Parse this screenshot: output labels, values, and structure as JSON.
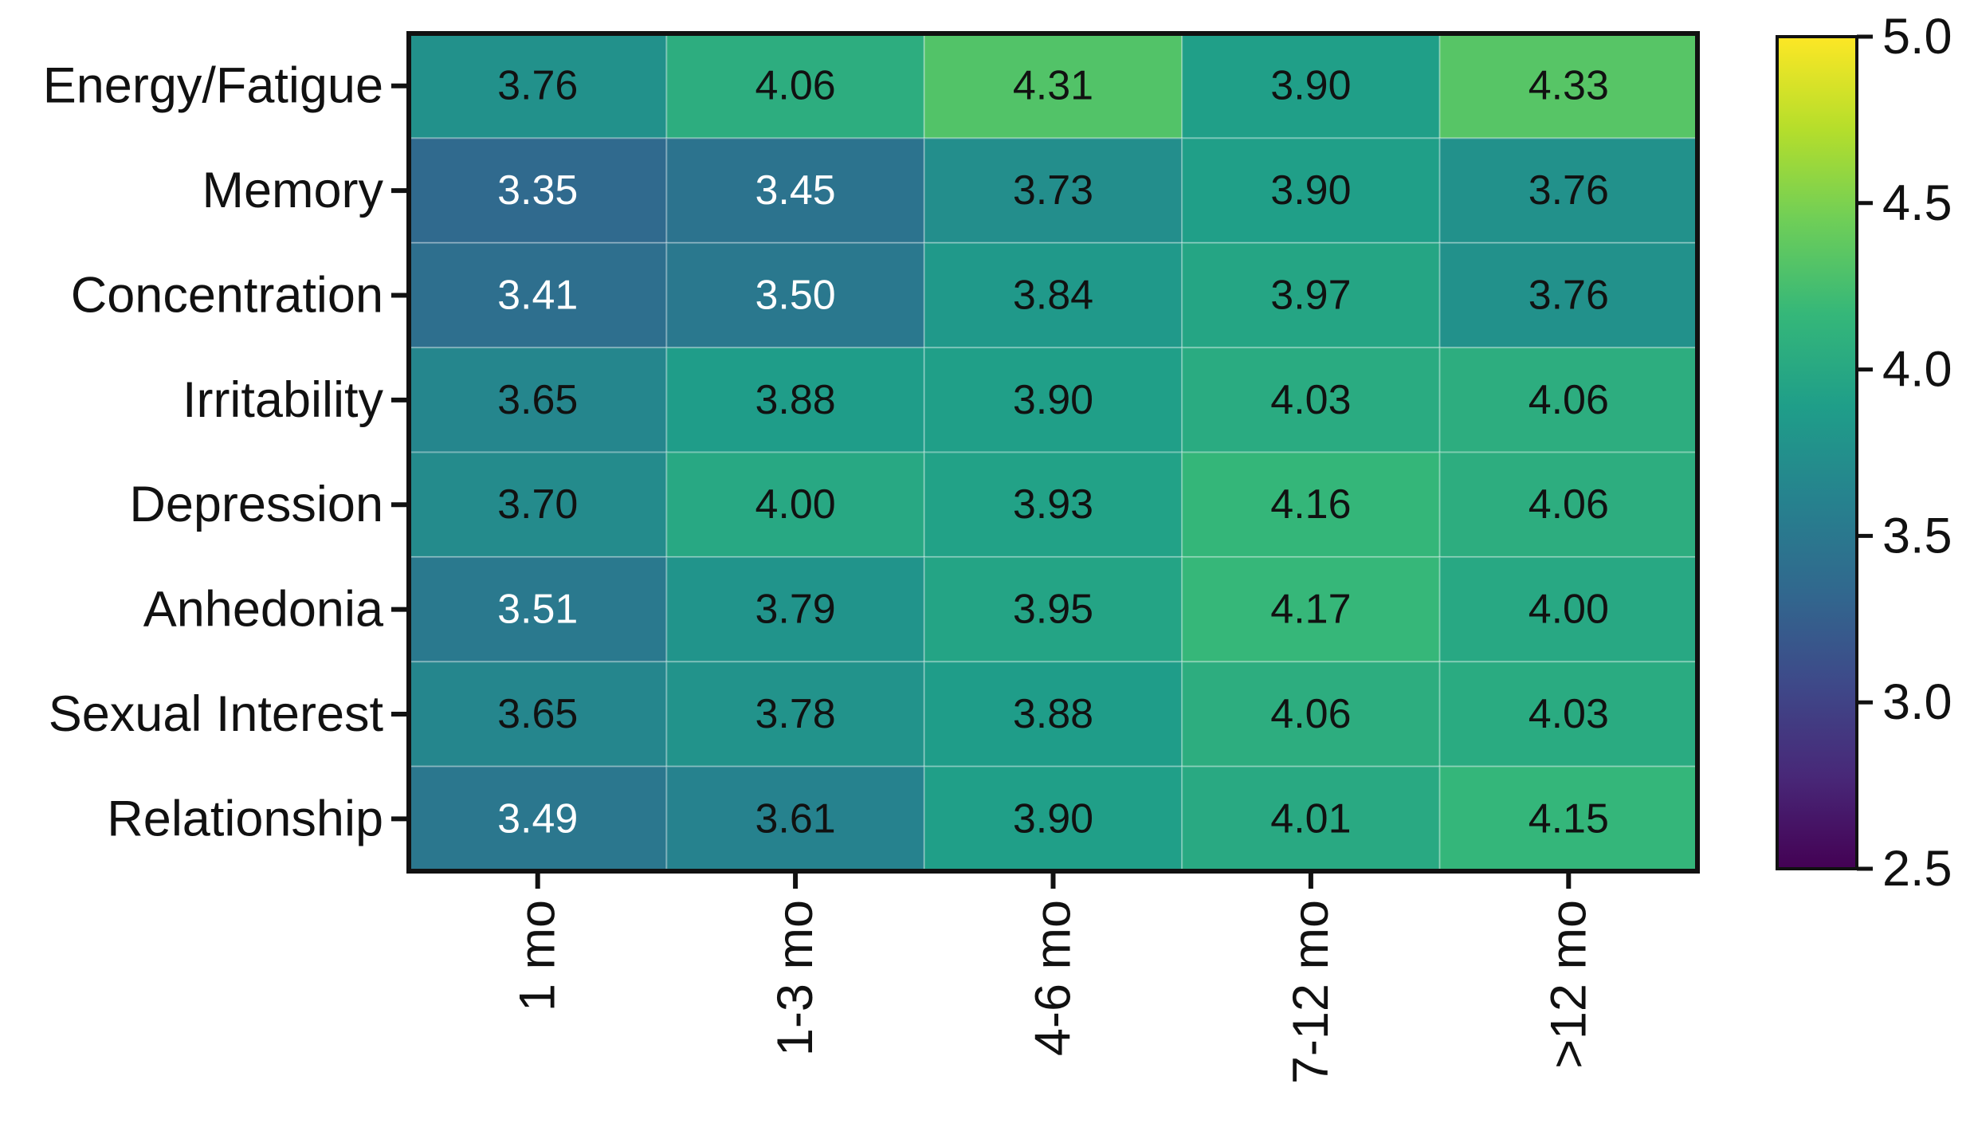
{
  "chart_data": {
    "type": "heatmap",
    "title": "",
    "xlabel": "",
    "ylabel": "",
    "columns": [
      "1 mo",
      "1-3 mo",
      "4-6 mo",
      "7-12 mo",
      ">12 mo"
    ],
    "rows": [
      "Energy/Fatigue",
      "Memory",
      "Concentration",
      "Irritability",
      "Depression",
      "Anhedonia",
      "Sexual Interest",
      "Relationship"
    ],
    "values": [
      [
        3.76,
        4.06,
        4.31,
        3.9,
        4.33
      ],
      [
        3.35,
        3.45,
        3.73,
        3.9,
        3.76
      ],
      [
        3.41,
        3.5,
        3.84,
        3.97,
        3.76
      ],
      [
        3.65,
        3.88,
        3.9,
        4.03,
        4.06
      ],
      [
        3.7,
        4.0,
        3.93,
        4.16,
        4.06
      ],
      [
        3.51,
        3.79,
        3.95,
        4.17,
        4.0
      ],
      [
        3.65,
        3.78,
        3.88,
        4.06,
        4.03
      ],
      [
        3.49,
        3.61,
        3.9,
        4.01,
        4.15
      ]
    ],
    "value_labels": [
      [
        "3.76",
        "4.06",
        "4.31",
        "3.90",
        "4.33"
      ],
      [
        "3.35",
        "3.45",
        "3.73",
        "3.90",
        "3.76"
      ],
      [
        "3.41",
        "3.50",
        "3.84",
        "3.97",
        "3.76"
      ],
      [
        "3.65",
        "3.88",
        "3.90",
        "4.03",
        "4.06"
      ],
      [
        "3.70",
        "4.00",
        "3.93",
        "4.16",
        "4.06"
      ],
      [
        "3.51",
        "3.79",
        "3.95",
        "4.17",
        "4.00"
      ],
      [
        "3.65",
        "3.78",
        "3.88",
        "4.06",
        "4.03"
      ],
      [
        "3.49",
        "3.61",
        "3.90",
        "4.01",
        "4.15"
      ]
    ],
    "colorbar": {
      "range": [
        2.5,
        5.0
      ],
      "ticks": [
        2.5,
        3.0,
        3.5,
        4.0,
        4.5,
        5.0
      ],
      "tick_labels": [
        "2.5",
        "3.0",
        "3.5",
        "4.0",
        "4.5",
        "5.0"
      ],
      "colormap": "viridis",
      "stops": [
        "#440154",
        "#482878",
        "#3e4989",
        "#31688e",
        "#26828e",
        "#1f9e89",
        "#35b779",
        "#6ece58",
        "#b5de2b",
        "#fde725"
      ]
    },
    "legend_position": "right",
    "grid": false,
    "light_text_threshold": 3.55,
    "light_text_color": "#ffffff",
    "dark_text_color": "#111111"
  }
}
